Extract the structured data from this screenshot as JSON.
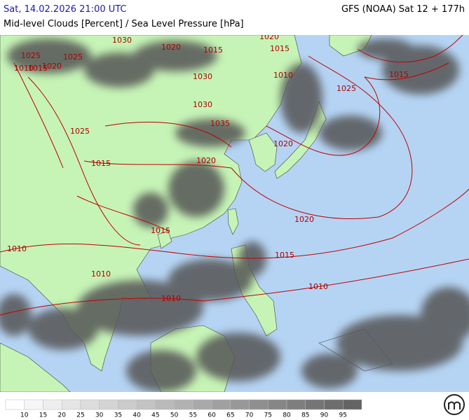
{
  "header": {
    "left_title": "Sat, 14.02.2026 21:00 UTC",
    "right_title": "GFS (NOAA) Sat 12 + 177h",
    "subtitle": "Mid-level Clouds [Percent] / Sea Level Pressure [hPa]"
  },
  "map": {
    "isobar_labels": [
      "1030",
      "1025",
      "1020",
      "1015",
      "1010",
      "1020",
      "1015",
      "1010",
      "1025",
      "1030",
      "1035",
      "1020",
      "1025",
      "1015",
      "1020",
      "1015",
      "1020",
      "1010",
      "1015",
      "1010",
      "1010",
      "1010",
      "1015",
      "1020",
      "1025",
      "1030",
      "1015"
    ]
  },
  "legend": {
    "labels": [
      "10",
      "15",
      "20",
      "25",
      "30",
      "35",
      "40",
      "45",
      "50",
      "55",
      "60",
      "65",
      "70",
      "75",
      "80",
      "85",
      "90",
      "95"
    ]
  }
}
